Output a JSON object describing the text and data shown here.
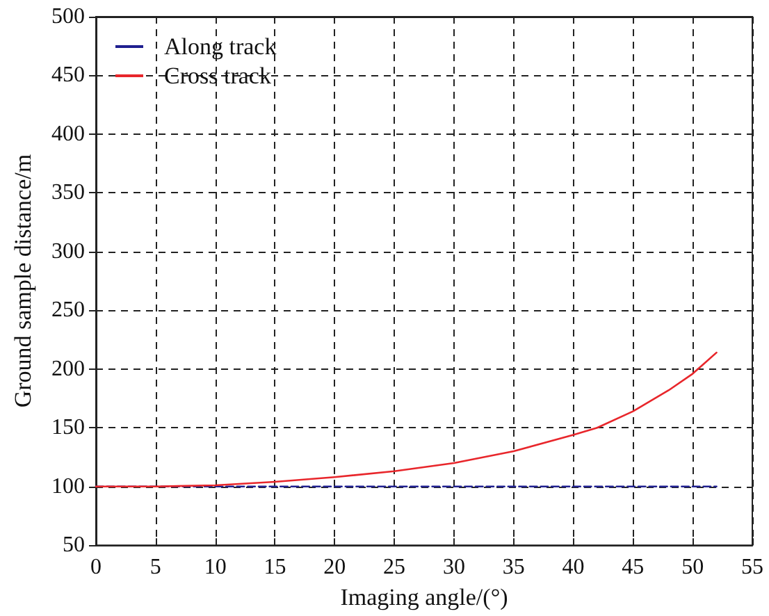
{
  "chart_data": {
    "type": "line",
    "xlabel": "Imaging angle/(°)",
    "ylabel": "Ground sample distance/m",
    "xlim": [
      0,
      55
    ],
    "xticks": [
      0,
      5,
      10,
      15,
      20,
      25,
      30,
      35,
      40,
      45,
      50,
      55
    ],
    "ylim": [
      50,
      500
    ],
    "yticks": [
      50,
      100,
      150,
      200,
      250,
      300,
      350,
      400,
      450,
      500
    ],
    "grid": true,
    "legend": "top left",
    "marker": "none",
    "series": [
      {
        "name": "Along track",
        "color": "#1f1f8f",
        "line_style": "dashed",
        "x": [
          0,
          10,
          20,
          30,
          40,
          52
        ],
        "values": [
          100,
          100,
          100,
          100,
          100,
          100
        ]
      },
      {
        "name": "Cross track",
        "color": "#e8262b",
        "line_style": "solid",
        "x": [
          0,
          5,
          10,
          15,
          20,
          25,
          30,
          35,
          40,
          42,
          45,
          48,
          50,
          52
        ],
        "values": [
          100,
          100,
          101,
          104,
          108,
          113,
          120,
          130,
          144,
          150,
          164,
          182,
          196,
          214
        ]
      }
    ]
  }
}
